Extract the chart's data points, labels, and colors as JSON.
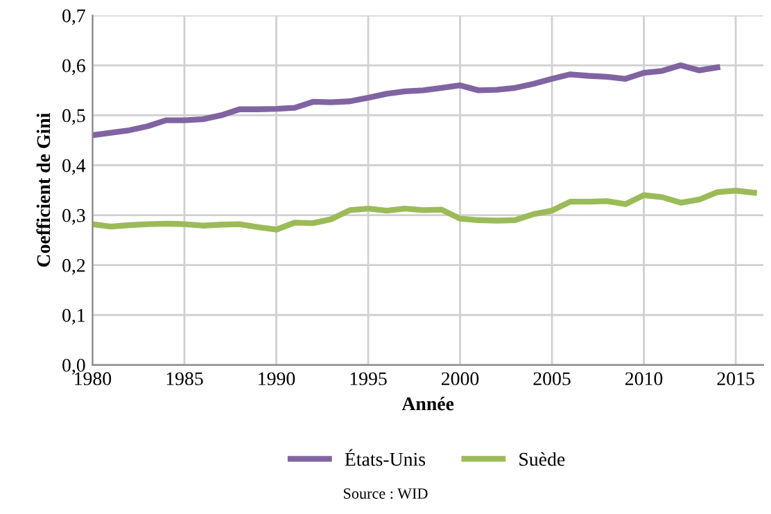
{
  "chart_data": {
    "type": "line",
    "xlabel": "Année",
    "ylabel": "Coefficient de Gini",
    "x": [
      1980,
      1981,
      1982,
      1983,
      1984,
      1985,
      1986,
      1987,
      1988,
      1989,
      1990,
      1991,
      1992,
      1993,
      1994,
      1995,
      1996,
      1997,
      1998,
      1999,
      2000,
      2001,
      2002,
      2003,
      2004,
      2005,
      2006,
      2007,
      2008,
      2009,
      2010,
      2011,
      2012,
      2013,
      2014,
      2015,
      2016
    ],
    "series": [
      {
        "name": "États-Unis",
        "color": "#8064a2",
        "values": [
          0.46,
          0.465,
          0.47,
          0.478,
          0.49,
          0.49,
          0.492,
          0.5,
          0.512,
          0.512,
          0.513,
          0.515,
          0.527,
          0.526,
          0.528,
          0.535,
          0.543,
          0.548,
          0.55,
          0.555,
          0.56,
          0.55,
          0.551,
          0.555,
          0.563,
          0.573,
          0.582,
          0.579,
          0.577,
          0.573,
          0.585,
          0.589,
          0.6,
          0.59,
          0.596,
          null,
          null
        ]
      },
      {
        "name": "Suède",
        "color": "#9bbb59",
        "values": [
          0.282,
          0.277,
          0.28,
          0.282,
          0.283,
          0.282,
          0.279,
          0.281,
          0.282,
          0.276,
          0.271,
          0.285,
          0.284,
          0.292,
          0.31,
          0.313,
          0.309,
          0.313,
          0.31,
          0.311,
          0.293,
          0.29,
          0.289,
          0.29,
          0.302,
          0.309,
          0.327,
          0.327,
          0.328,
          0.322,
          0.34,
          0.336,
          0.325,
          0.331,
          0.346,
          0.349,
          0.345
        ]
      }
    ],
    "xlim": [
      1980,
      2016.5
    ],
    "xticks": [
      1980,
      1985,
      1990,
      1995,
      2000,
      2005,
      2010,
      2015
    ],
    "ylim": [
      0,
      0.7
    ],
    "yticks": [
      {
        "value": 0,
        "label": "0,0"
      },
      {
        "value": 0.1,
        "label": "0,1"
      },
      {
        "value": 0.2,
        "label": "0,2"
      },
      {
        "value": 0.3,
        "label": "0,3"
      },
      {
        "value": 0.4,
        "label": "0,4"
      },
      {
        "value": 0.5,
        "label": "0,5"
      },
      {
        "value": 0.6,
        "label": "0,6"
      },
      {
        "value": 0.7,
        "label": "0,7"
      }
    ],
    "grid": true,
    "legend": "bottom",
    "marker": "none",
    "line_style": "solid",
    "annotations": [
      "Source : WID"
    ]
  }
}
